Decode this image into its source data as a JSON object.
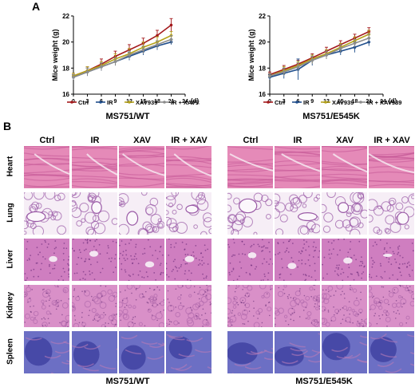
{
  "panel_a_label": "A",
  "panel_b_label": "B",
  "colors": {
    "Ctrl": "#a3191c",
    "IR": "#1f4e8c",
    "XAV939": "#b5a21a",
    "IR + XAV939": "#8c8c8c"
  },
  "chart_data": [
    {
      "type": "line",
      "title": "",
      "caption": "MS751/WT",
      "xlabel": "(d)",
      "ylabel": "Mice weight (g)",
      "x": [
        0,
        3,
        6,
        9,
        12,
        15,
        18,
        21
      ],
      "x_ticks": [
        "0",
        "3",
        "6",
        "9",
        "12",
        "15",
        "18",
        "21",
        "24"
      ],
      "y_ticks": [
        "16",
        "18",
        "20",
        "22"
      ],
      "xlim": [
        0,
        24
      ],
      "ylim": [
        16,
        22
      ],
      "series": [
        {
          "name": "Ctrl",
          "values": [
            17.4,
            17.8,
            18.3,
            18.9,
            19.4,
            19.9,
            20.5,
            21.3
          ],
          "err": [
            0.2,
            0.3,
            0.4,
            0.4,
            0.4,
            0.4,
            0.4,
            0.5
          ]
        },
        {
          "name": "IR",
          "values": [
            17.3,
            17.7,
            18.1,
            18.5,
            18.9,
            19.3,
            19.7,
            20.0
          ],
          "err": [
            0.2,
            0.3,
            0.3,
            0.3,
            0.3,
            0.3,
            0.3,
            0.2
          ]
        },
        {
          "name": "XAV939",
          "values": [
            17.4,
            17.8,
            18.2,
            18.7,
            19.1,
            19.6,
            20.0,
            20.5
          ],
          "err": [
            0.2,
            0.3,
            0.3,
            0.4,
            0.4,
            0.4,
            0.4,
            0.3
          ]
        },
        {
          "name": "IR + XAV939",
          "values": [
            17.3,
            17.7,
            18.1,
            18.5,
            19.0,
            19.4,
            19.8,
            20.2
          ],
          "err": [
            0.2,
            0.3,
            0.3,
            0.3,
            0.3,
            0.3,
            0.3,
            0.3
          ]
        }
      ]
    },
    {
      "type": "line",
      "title": "",
      "caption": "MS751/E545K",
      "xlabel": "(d)",
      "ylabel": "Mice weight (g)",
      "x": [
        0,
        3,
        6,
        9,
        12,
        15,
        18,
        21
      ],
      "x_ticks": [
        "0",
        "3",
        "6",
        "9",
        "12",
        "15",
        "18",
        "21",
        "24"
      ],
      "y_ticks": [
        "16",
        "18",
        "20",
        "22"
      ],
      "xlim": [
        0,
        24
      ],
      "ylim": [
        16,
        22
      ],
      "series": [
        {
          "name": "Ctrl",
          "values": [
            17.5,
            17.9,
            18.3,
            18.8,
            19.3,
            19.8,
            20.3,
            20.8
          ],
          "err": [
            0.2,
            0.3,
            0.3,
            0.3,
            0.3,
            0.3,
            0.3,
            0.3
          ]
        },
        {
          "name": "IR",
          "values": [
            17.3,
            17.6,
            17.9,
            18.6,
            19.0,
            19.3,
            19.6,
            20.0
          ],
          "err": [
            0.2,
            0.4,
            0.8,
            0.4,
            0.3,
            0.3,
            0.4,
            0.3
          ]
        },
        {
          "name": "XAV939",
          "values": [
            17.4,
            17.8,
            18.2,
            18.7,
            19.1,
            19.6,
            20.1,
            20.6
          ],
          "err": [
            0.2,
            0.3,
            0.3,
            0.3,
            0.3,
            0.3,
            0.3,
            0.3
          ]
        },
        {
          "name": "IR + XAV939",
          "values": [
            17.4,
            17.7,
            18.1,
            18.6,
            19.0,
            19.5,
            19.9,
            20.3
          ],
          "err": [
            0.2,
            0.3,
            0.3,
            0.3,
            0.3,
            0.3,
            0.3,
            0.3
          ]
        }
      ]
    }
  ],
  "panel_b": {
    "column_headers": [
      "Ctrl",
      "IR",
      "XAV",
      "IR + XAV"
    ],
    "row_labels": [
      "Heart",
      "Lung",
      "Liver",
      "Kidney",
      "Spleen"
    ],
    "captions": [
      "MS751/WT",
      "MS751/E545K"
    ],
    "tissue_colors": {
      "Heart": {
        "bg": "#e58ab8",
        "fg": "#c65a98"
      },
      "Lung": {
        "bg": "#f6eef6",
        "fg": "#9a5aa6"
      },
      "Liver": {
        "bg": "#cf7ec0",
        "fg": "#a7559e"
      },
      "Kidney": {
        "bg": "#d990c8",
        "fg": "#b06aac"
      },
      "Spleen": {
        "bg": "#6c6fc4",
        "fg": "#3b3c9e"
      }
    }
  }
}
